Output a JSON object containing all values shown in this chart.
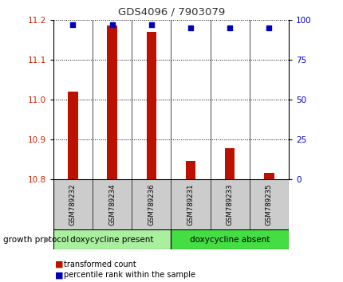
{
  "title": "GDS4096 / 7903079",
  "samples": [
    "GSM789232",
    "GSM789234",
    "GSM789236",
    "GSM789231",
    "GSM789233",
    "GSM789235"
  ],
  "bar_values": [
    11.02,
    11.185,
    11.17,
    10.845,
    10.878,
    10.815
  ],
  "bar_bottom": 10.8,
  "percentile_values": [
    97,
    97,
    97,
    95,
    95,
    95
  ],
  "ymin": 10.8,
  "ymax": 11.2,
  "y2min": 0,
  "y2max": 100,
  "yticks": [
    10.8,
    10.9,
    11.0,
    11.1,
    11.2
  ],
  "y2ticks": [
    0,
    25,
    50,
    75,
    100
  ],
  "bar_color": "#bb1100",
  "dot_color": "#0000bb",
  "group1_label": "doxycycline present",
  "group2_label": "doxycycline absent",
  "group_bg1": "#aaeea0",
  "group_bg2": "#44dd44",
  "sample_bg": "#cccccc",
  "protocol_label": "growth protocol",
  "legend1": "transformed count",
  "legend2": "percentile rank within the sample",
  "left_axis_color": "#cc2200",
  "right_axis_color": "#0000cc",
  "title_color": "#333333"
}
